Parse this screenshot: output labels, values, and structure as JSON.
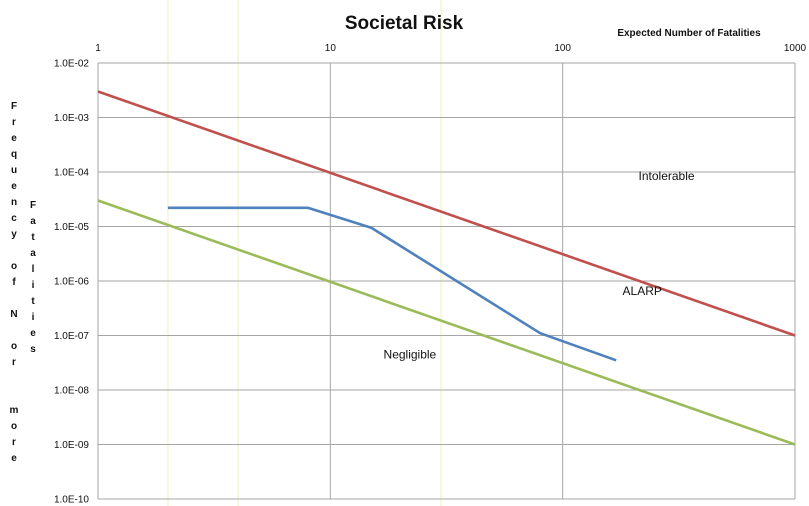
{
  "chart_data": {
    "type": "line",
    "title": "Societal Risk",
    "xlabel": "Expected Number of Fatalities",
    "ylabel_col1": [
      "F",
      "r",
      "e",
      "q",
      "u",
      "e",
      "n",
      "c",
      "y",
      "",
      "o",
      "f",
      "",
      "N",
      "",
      "o",
      "r",
      "",
      "",
      "m",
      "o",
      "r",
      "e"
    ],
    "ylabel_col2": [
      "F",
      "a",
      "t",
      "a",
      "l",
      "i",
      "t",
      "i",
      "e",
      "s"
    ],
    "x_scale": "log",
    "y_scale": "log",
    "xlim": [
      1,
      1000
    ],
    "ylim": [
      1e-10,
      0.01
    ],
    "x_ticks": [
      1,
      10,
      100,
      1000
    ],
    "x_tick_labels": [
      "1",
      "10",
      "100",
      "1000"
    ],
    "y_ticks": [
      0.01,
      0.001,
      0.0001,
      1e-05,
      1e-06,
      1e-07,
      1e-08,
      1e-09,
      1e-10
    ],
    "y_tick_labels": [
      "1.0E-02",
      "1.0E-03",
      "1.0E-04",
      "1.0E-05",
      "1.0E-06",
      "1.0E-07",
      "1.0E-08",
      "1.0E-09",
      "1.0E-10"
    ],
    "x_axis_position": "top",
    "grid": true,
    "series": [
      {
        "color": "#c0504d",
        "x": [
          1,
          1000
        ],
        "y": [
          0.003,
          1e-07
        ]
      },
      {
        "color": "#9bbb59",
        "x": [
          1,
          1000
        ],
        "y": [
          3e-05,
          1e-09
        ]
      },
      {
        "color": "#4f81bd",
        "x": [
          2,
          8,
          15,
          80,
          170
        ],
        "y": [
          2.2e-05,
          2.2e-05,
          9.5e-06,
          1.1e-07,
          3.5e-08
        ]
      }
    ],
    "annotations": [
      {
        "text": "Intolerable",
        "x": 280,
        "y": 7.1e-05
      },
      {
        "text": "ALARP",
        "x": 220,
        "y": 5.5e-07
      },
      {
        "text": "Negligible",
        "x": 22,
        "y": 3.8e-08
      }
    ]
  }
}
